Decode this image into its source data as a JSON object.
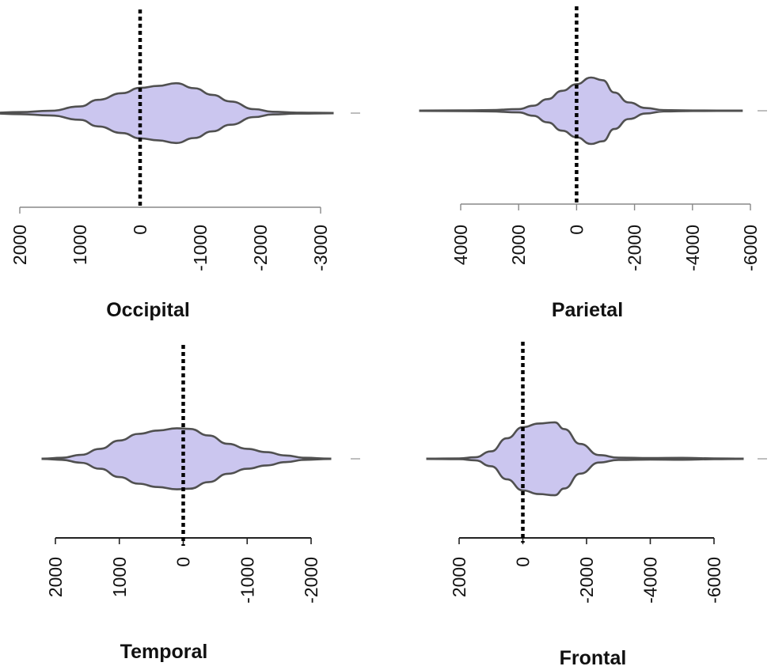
{
  "chart_data": [
    {
      "type": "violin",
      "title": "Occipital",
      "xticks": [
        2000,
        1000,
        0,
        -1000,
        -2000,
        -3000
      ],
      "tick_labels": [
        "2000",
        "1000",
        "0",
        "-1000",
        "-2000",
        "-3000"
      ],
      "xlim": [
        2000,
        -3000
      ],
      "reference_line": 0,
      "range": [
        3100,
        -3200
      ],
      "density": [
        [
          3100,
          0.005
        ],
        [
          2500,
          0.01
        ],
        [
          2000,
          0.03
        ],
        [
          1500,
          0.07
        ],
        [
          1000,
          0.2
        ],
        [
          700,
          0.4
        ],
        [
          300,
          0.6
        ],
        [
          0,
          0.76
        ],
        [
          -300,
          0.82
        ],
        [
          -600,
          0.9
        ],
        [
          -900,
          0.75
        ],
        [
          -1200,
          0.55
        ],
        [
          -1500,
          0.35
        ],
        [
          -1900,
          0.12
        ],
        [
          -2200,
          0.04
        ],
        [
          -2600,
          0.015
        ],
        [
          -3200,
          0.005
        ]
      ]
    },
    {
      "type": "violin",
      "title": "Parietal",
      "xticks": [
        4000,
        2000,
        0,
        -2000,
        -4000,
        -6000
      ],
      "tick_labels": [
        "4000",
        "2000",
        "0",
        "-2000",
        "-4000",
        "-6000"
      ],
      "xlim": [
        4000,
        -6000
      ],
      "reference_line": 0,
      "range": [
        5400,
        -5700
      ],
      "density": [
        [
          5400,
          0.004
        ],
        [
          4000,
          0.01
        ],
        [
          3000,
          0.02
        ],
        [
          2000,
          0.05
        ],
        [
          1500,
          0.15
        ],
        [
          1000,
          0.35
        ],
        [
          500,
          0.6
        ],
        [
          0,
          0.8
        ],
        [
          -500,
          1.0
        ],
        [
          -900,
          0.92
        ],
        [
          -1300,
          0.55
        ],
        [
          -1800,
          0.25
        ],
        [
          -2400,
          0.08
        ],
        [
          -3000,
          0.02
        ],
        [
          -4000,
          0.008
        ],
        [
          -5700,
          0.004
        ]
      ]
    },
    {
      "type": "violin",
      "title": "Temporal",
      "xticks": [
        2000,
        1000,
        0,
        -1000,
        -2000
      ],
      "tick_labels": [
        "2000",
        "1000",
        "0",
        "-1000",
        "-2000"
      ],
      "xlim": [
        2000,
        -2000
      ],
      "reference_line": 0,
      "range": [
        2200,
        -2300
      ],
      "density": [
        [
          2200,
          0.005
        ],
        [
          1900,
          0.03
        ],
        [
          1600,
          0.12
        ],
        [
          1300,
          0.3
        ],
        [
          1000,
          0.55
        ],
        [
          700,
          0.75
        ],
        [
          400,
          0.85
        ],
        [
          100,
          0.92
        ],
        [
          -100,
          0.9
        ],
        [
          -400,
          0.7
        ],
        [
          -700,
          0.45
        ],
        [
          -1000,
          0.3
        ],
        [
          -1300,
          0.2
        ],
        [
          -1600,
          0.1
        ],
        [
          -1900,
          0.03
        ],
        [
          -2300,
          0.005
        ]
      ]
    },
    {
      "type": "violin",
      "title": "Frontal",
      "xticks": [
        2000,
        0,
        -2000,
        -4000,
        -6000
      ],
      "tick_labels": [
        "2000",
        "0",
        "-2000",
        "-4000",
        "-6000"
      ],
      "xlim": [
        2000,
        -6000
      ],
      "reference_line": 0,
      "range": [
        3000,
        -6900
      ],
      "density": [
        [
          3000,
          0.004
        ],
        [
          2000,
          0.01
        ],
        [
          1500,
          0.04
        ],
        [
          1000,
          0.2
        ],
        [
          500,
          0.55
        ],
        [
          0,
          0.85
        ],
        [
          -500,
          0.95
        ],
        [
          -1000,
          0.98
        ],
        [
          -1300,
          0.8
        ],
        [
          -1800,
          0.4
        ],
        [
          -2400,
          0.1
        ],
        [
          -3000,
          0.03
        ],
        [
          -4000,
          0.02
        ],
        [
          -5000,
          0.025
        ],
        [
          -6000,
          0.01
        ],
        [
          -6900,
          0.004
        ]
      ]
    }
  ]
}
